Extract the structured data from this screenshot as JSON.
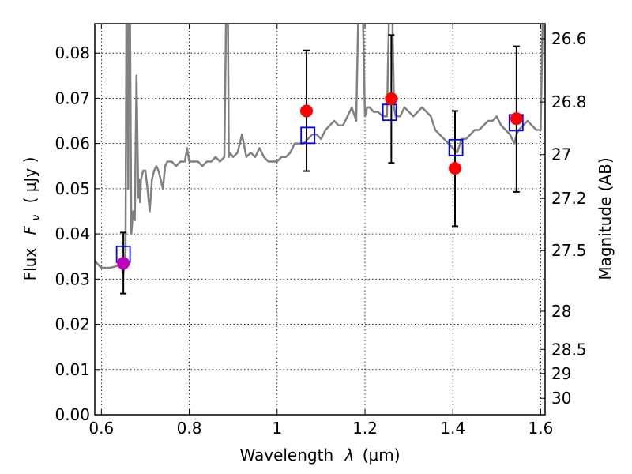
{
  "chart_data": {
    "type": "scatter",
    "xlabel_text": "Wavelength",
    "xlabel_symbol": "λ",
    "xlabel_unit": "(μm)",
    "ylabel_text": "Flux",
    "ylabel_symbol": "F",
    "ylabel_subscript": "ν",
    "ylabel_unit": "( μJy )",
    "y2label": "Magnitude (AB)",
    "xlim": [
      0.585,
      1.61
    ],
    "ylim": [
      0.0,
      0.0865
    ],
    "grid": true,
    "x_ticks": [
      0.6,
      0.8,
      1.0,
      1.2,
      1.4,
      1.6
    ],
    "x_tick_labels": [
      "0.6",
      "0.8",
      "1",
      "1.2",
      "1.4",
      "1.6"
    ],
    "y_ticks": [
      0.0,
      0.01,
      0.02,
      0.03,
      0.04,
      0.05,
      0.06,
      0.07,
      0.08
    ],
    "y_tick_labels": [
      "0.00",
      "0.01",
      "0.02",
      "0.03",
      "0.04",
      "0.05",
      "0.06",
      "0.07",
      "0.08"
    ],
    "mag_ticks": [
      26.6,
      26.8,
      27.0,
      27.2,
      27.5,
      28.0,
      28.5,
      29.0,
      30.0
    ],
    "mag_tick_labels": [
      "26.6",
      "26.8",
      "27",
      "27.2",
      "27.5",
      "28",
      "28.5",
      "29",
      "30"
    ],
    "colors": {
      "spectrum": "#808080",
      "observed": "#ff0000",
      "observed_first": "#bf00bf",
      "model": "#0000ff",
      "errorbar": "#000000"
    },
    "series": [
      {
        "kind": "model_spectrum",
        "x": [
          0.585,
          0.6,
          0.62,
          0.64,
          0.645,
          0.65,
          0.655,
          0.657,
          0.659,
          0.661,
          0.663,
          0.665,
          0.668,
          0.672,
          0.676,
          0.68,
          0.684,
          0.686,
          0.688,
          0.69,
          0.695,
          0.7,
          0.705,
          0.71,
          0.715,
          0.72,
          0.725,
          0.73,
          0.735,
          0.74,
          0.745,
          0.75,
          0.76,
          0.77,
          0.78,
          0.79,
          0.795,
          0.8,
          0.81,
          0.82,
          0.83,
          0.84,
          0.85,
          0.86,
          0.87,
          0.88,
          0.884,
          0.886,
          0.888,
          0.89,
          0.892,
          0.9,
          0.91,
          0.92,
          0.93,
          0.94,
          0.95,
          0.96,
          0.97,
          0.98,
          0.99,
          1.0,
          1.01,
          1.02,
          1.03,
          1.04,
          1.05,
          1.06,
          1.07,
          1.08,
          1.09,
          1.1,
          1.11,
          1.12,
          1.13,
          1.14,
          1.15,
          1.16,
          1.17,
          1.18,
          1.185,
          1.19,
          1.195,
          1.2,
          1.205,
          1.21,
          1.22,
          1.23,
          1.24,
          1.25,
          1.255,
          1.258,
          1.262,
          1.266,
          1.27,
          1.28,
          1.29,
          1.3,
          1.31,
          1.32,
          1.33,
          1.34,
          1.35,
          1.36,
          1.37,
          1.38,
          1.39,
          1.4,
          1.41,
          1.42,
          1.43,
          1.44,
          1.45,
          1.46,
          1.47,
          1.48,
          1.49,
          1.5,
          1.51,
          1.52,
          1.53,
          1.54,
          1.545,
          1.55,
          1.56,
          1.57,
          1.58,
          1.59,
          1.6,
          1.605,
          1.608
        ],
        "y": [
          0.034,
          0.0325,
          0.0325,
          0.033,
          0.033,
          0.031,
          0.036,
          0.09,
          0.09,
          0.05,
          0.09,
          0.09,
          0.04,
          0.045,
          0.043,
          0.075,
          0.048,
          0.052,
          0.047,
          0.052,
          0.054,
          0.054,
          0.05,
          0.045,
          0.052,
          0.054,
          0.055,
          0.054,
          0.052,
          0.05,
          0.055,
          0.056,
          0.056,
          0.055,
          0.056,
          0.056,
          0.059,
          0.056,
          0.056,
          0.056,
          0.055,
          0.056,
          0.056,
          0.057,
          0.056,
          0.057,
          0.09,
          0.09,
          0.09,
          0.057,
          0.058,
          0.057,
          0.058,
          0.062,
          0.057,
          0.058,
          0.057,
          0.059,
          0.057,
          0.056,
          0.056,
          0.056,
          0.057,
          0.057,
          0.058,
          0.06,
          0.06,
          0.06,
          0.061,
          0.062,
          0.062,
          0.061,
          0.063,
          0.064,
          0.065,
          0.064,
          0.064,
          0.066,
          0.068,
          0.065,
          0.09,
          0.09,
          0.09,
          0.066,
          0.068,
          0.068,
          0.067,
          0.067,
          0.066,
          0.066,
          0.09,
          0.09,
          0.09,
          0.068,
          0.066,
          0.066,
          0.068,
          0.067,
          0.066,
          0.067,
          0.068,
          0.067,
          0.066,
          0.063,
          0.062,
          0.061,
          0.06,
          0.059,
          0.058,
          0.061,
          0.061,
          0.062,
          0.063,
          0.063,
          0.064,
          0.065,
          0.065,
          0.066,
          0.064,
          0.063,
          0.062,
          0.06,
          0.062,
          0.063,
          0.064,
          0.065,
          0.064,
          0.063,
          0.063,
          0.09,
          0.09
        ]
      },
      {
        "kind": "observed",
        "x": [
          0.65,
          1.067,
          1.26,
          1.405,
          1.545
        ],
        "y": [
          0.0335,
          0.0672,
          0.0699,
          0.0545,
          0.0655
        ],
        "yerr_low": [
          0.0268,
          0.0539,
          0.0557,
          0.0417,
          0.0493
        ],
        "yerr_high": [
          0.0403,
          0.0806,
          0.084,
          0.0672,
          0.0815
        ]
      },
      {
        "kind": "model_photometry",
        "x": [
          0.65,
          1.07,
          1.256,
          1.407,
          1.544
        ],
        "y": [
          0.0355,
          0.0618,
          0.0669,
          0.0591,
          0.0646
        ]
      }
    ]
  }
}
